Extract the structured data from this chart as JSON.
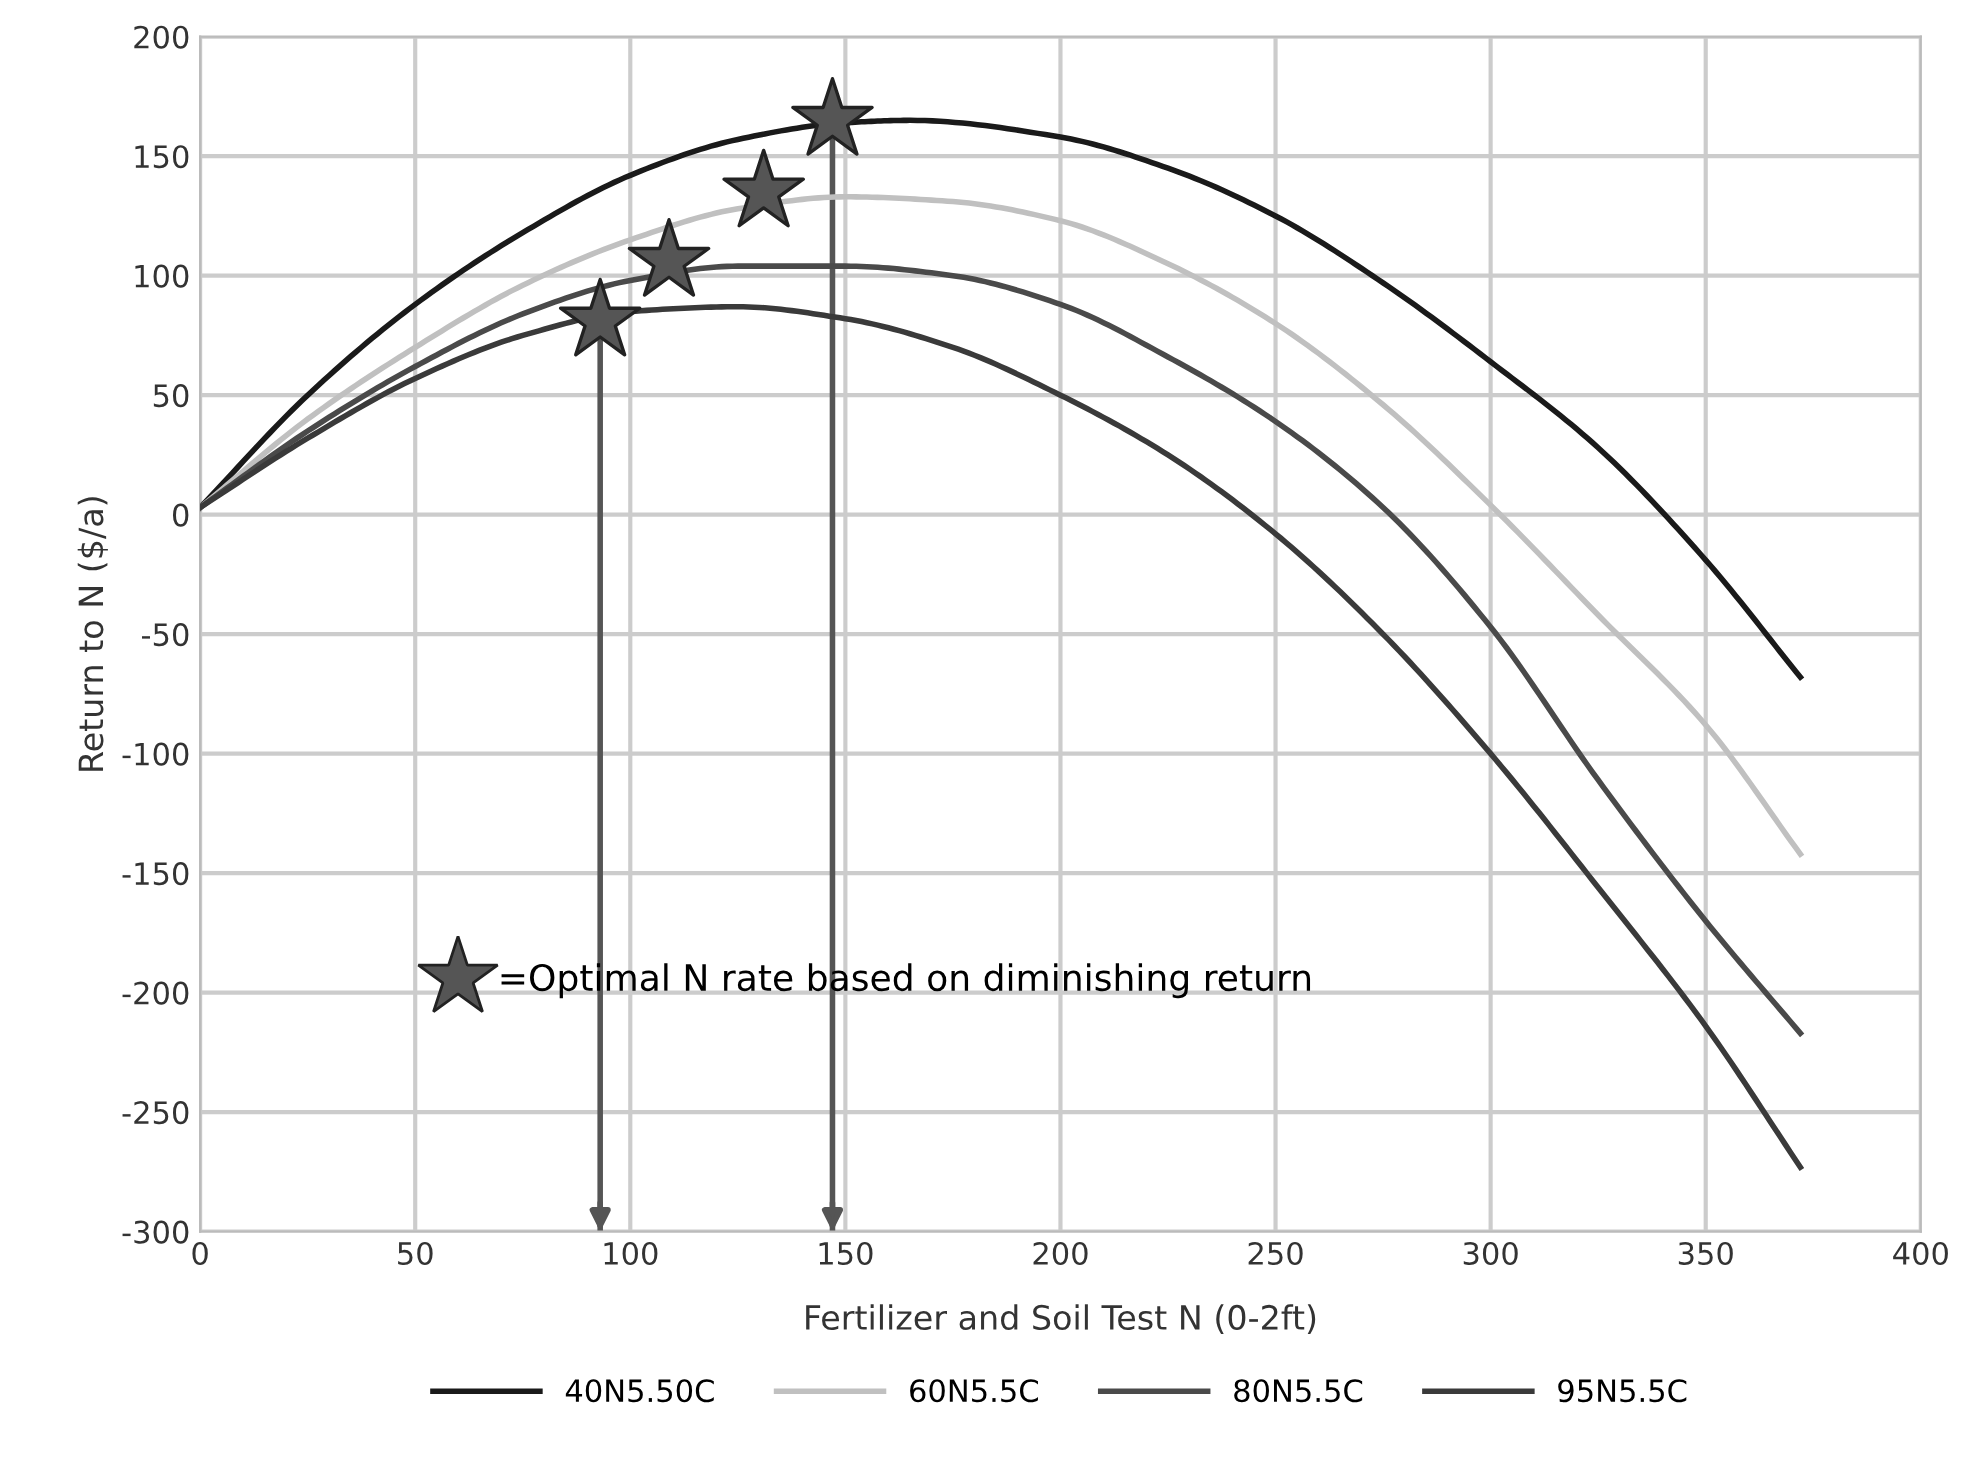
{
  "chart_data": {
    "type": "line",
    "xlabel": "Fertilizer and Soil Test N (0-2ft)",
    "ylabel": "Return to N ($/a)",
    "xlim": [
      0,
      400
    ],
    "xticks": [
      0,
      50,
      100,
      150,
      200,
      250,
      300,
      350,
      400
    ],
    "ylim": [
      -300,
      200
    ],
    "yticks": [
      -300,
      -250,
      -200,
      -150,
      -100,
      -50,
      0,
      50,
      100,
      150,
      200
    ],
    "grid": true,
    "legend": "bottom",
    "marker": "none",
    "line_style": "solid",
    "series": [
      {
        "name": "40N5.50C",
        "color": "#1a1a1a",
        "x": [
          0,
          25,
          50,
          75,
          100,
          125,
          150,
          165,
          200,
          225,
          250,
          275,
          300,
          325,
          350,
          372
        ],
        "values": [
          3,
          50,
          88,
          118,
          142,
          157,
          164,
          165,
          158,
          145,
          125,
          97,
          64,
          28,
          -19,
          -68
        ]
      },
      {
        "name": "60N5.5C",
        "color": "#c0c0c0",
        "x": [
          0,
          25,
          50,
          75,
          100,
          125,
          150,
          175,
          200,
          225,
          250,
          275,
          300,
          325,
          350,
          372
        ],
        "values": [
          3,
          40,
          70,
          96,
          115,
          128,
          133,
          131,
          123,
          105,
          80,
          46,
          4,
          -42,
          -88,
          -142
        ]
      },
      {
        "name": "80N5.5C",
        "color": "#4a4a4a",
        "x": [
          0,
          25,
          50,
          75,
          100,
          125,
          150,
          175,
          200,
          225,
          250,
          275,
          300,
          325,
          350,
          372
        ],
        "values": [
          3,
          35,
          62,
          84,
          98,
          104,
          104,
          100,
          88,
          66,
          39,
          3,
          -47,
          -111,
          -170,
          -217
        ]
      },
      {
        "name": "95N5.5C",
        "color": "#3a3a3a",
        "x": [
          0,
          25,
          50,
          75,
          100,
          125,
          150,
          175,
          200,
          225,
          250,
          275,
          300,
          325,
          350,
          372
        ],
        "values": [
          3,
          32,
          57,
          75,
          85,
          87,
          82,
          70,
          50,
          25,
          -8,
          -50,
          -100,
          -156,
          -214,
          -273
        ]
      },
      {
        "name": "=Optimal N rate based on diminishing return",
        "type": "scatter",
        "marker": "star",
        "color": "#555555",
        "x": [
          93,
          109,
          131,
          147
        ],
        "values": [
          81,
          106,
          135,
          165
        ]
      }
    ],
    "ref_lines": [
      {
        "axis": "x",
        "value": 93,
        "color": "#555555"
      },
      {
        "axis": "x",
        "value": 147,
        "color": "#555555"
      }
    ]
  }
}
